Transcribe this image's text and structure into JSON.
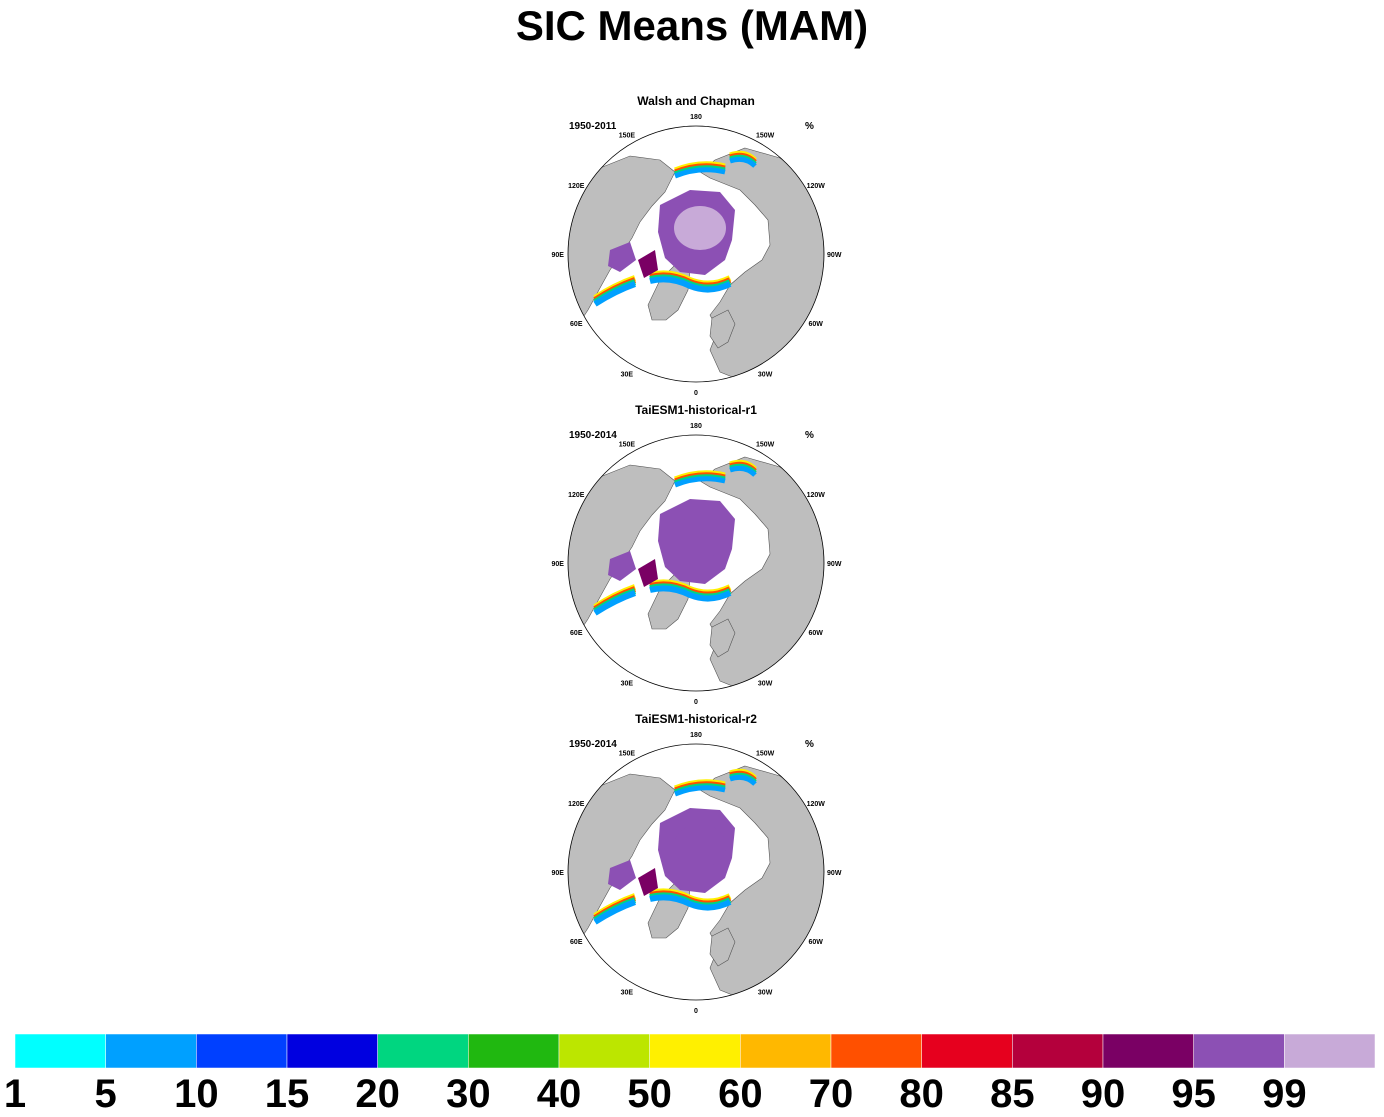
{
  "title": "SIC Means (MAM)",
  "unit": "%",
  "longitude_labels": [
    "180",
    "150E",
    "120E",
    "90E",
    "60E",
    "30E",
    "0",
    "30W",
    "60W",
    "90W",
    "120W",
    "150W"
  ],
  "colors": {
    "land": "#bebebe",
    "ocean": "#ffffff"
  },
  "panels": [
    {
      "title": "Walsh and Chapman",
      "period": "1950-2011",
      "ice_extent": "obs"
    },
    {
      "title": "TaiESM1-historical-r1",
      "period": "1950-2014",
      "ice_extent": "model"
    },
    {
      "title": "TaiESM1-historical-r2",
      "period": "1950-2014",
      "ice_extent": "model"
    }
  ],
  "colorbar": {
    "labels": [
      "1",
      "5",
      "10",
      "15",
      "20",
      "30",
      "40",
      "50",
      "60",
      "70",
      "80",
      "85",
      "90",
      "95",
      "99"
    ],
    "colors": [
      "#00ffff",
      "#00a0ff",
      "#0040ff",
      "#0000e0",
      "#00d680",
      "#20b810",
      "#bce600",
      "#fff000",
      "#ffb800",
      "#ff5000",
      "#e6001e",
      "#b4003c",
      "#7a0064",
      "#8c50b4",
      "#c8aad8"
    ]
  }
}
